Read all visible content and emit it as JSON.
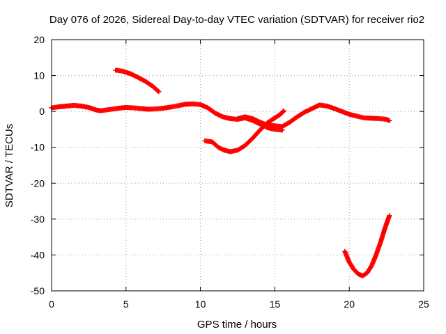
{
  "chart_data": {
    "type": "scatter",
    "title": "Day 076 of 2026, Sidereal Day-to-day VTEC variation (SDTVAR) for receiver rio2",
    "xlabel": "GPS time / hours",
    "ylabel": "SDTVAR / TECUs",
    "xlim": [
      0,
      25
    ],
    "ylim": [
      -50,
      20
    ],
    "xticks": [
      0,
      5,
      10,
      15,
      20,
      25
    ],
    "yticks": [
      20,
      10,
      0,
      -10,
      -20,
      -30,
      -40,
      -50
    ],
    "grid": true,
    "marker": "+",
    "color": "#ff0000",
    "series": [
      {
        "name": "trace-1",
        "x": [
          0.0,
          0.5,
          1.0,
          1.5,
          2.0,
          2.5,
          3.0,
          3.3,
          4.0,
          4.5,
          5.0,
          5.5,
          6.0,
          6.5,
          7.0,
          7.5,
          8.0,
          8.5,
          9.0,
          9.5,
          10.0,
          10.5,
          11.0,
          11.5,
          12.0,
          12.5,
          13.0,
          13.5,
          14.0,
          14.5,
          15.0,
          15.5
        ],
        "y": [
          1.0,
          1.3,
          1.5,
          1.7,
          1.5,
          1.1,
          0.4,
          0.2,
          0.6,
          0.9,
          1.1,
          1.0,
          0.8,
          0.6,
          0.7,
          0.9,
          1.2,
          1.6,
          2.0,
          2.1,
          1.9,
          1.0,
          -0.5,
          -1.5,
          -2.0,
          -2.2,
          -1.8,
          -2.5,
          -3.5,
          -4.5,
          -5.0,
          -5.2
        ]
      },
      {
        "name": "trace-2",
        "x": [
          4.3,
          4.8,
          5.3,
          5.8,
          6.3,
          6.8,
          7.2
        ],
        "y": [
          11.5,
          11.2,
          10.5,
          9.5,
          8.4,
          7.0,
          5.5
        ]
      },
      {
        "name": "trace-3",
        "x": [
          10.3,
          10.8,
          11.2,
          11.6,
          12.0,
          12.5,
          13.0,
          13.5,
          14.0,
          14.5,
          15.0,
          15.3,
          15.5,
          15.6
        ],
        "y": [
          -8.2,
          -8.5,
          -10.0,
          -10.8,
          -11.2,
          -10.8,
          -9.5,
          -7.5,
          -5.2,
          -3.2,
          -1.8,
          -1.0,
          -0.3,
          0.2
        ]
      },
      {
        "name": "trace-4",
        "x": [
          12.5,
          13.0,
          13.5,
          14.0,
          14.5,
          15.0,
          15.5,
          16.0,
          16.5,
          17.0,
          17.5,
          18.0,
          18.5,
          19.0,
          19.5,
          20.0,
          20.5,
          21.0,
          21.5,
          22.0,
          22.5,
          22.7
        ],
        "y": [
          -2.0,
          -1.5,
          -2.0,
          -3.0,
          -3.8,
          -4.0,
          -4.2,
          -3.0,
          -1.5,
          -0.2,
          0.8,
          1.8,
          1.5,
          0.8,
          0.0,
          -0.8,
          -1.3,
          -1.8,
          -1.9,
          -2.0,
          -2.2,
          -2.6
        ]
      },
      {
        "name": "trace-5",
        "x": [
          19.7,
          20.0,
          20.3,
          20.6,
          20.9,
          21.2,
          21.5,
          21.8,
          22.1,
          22.4,
          22.7
        ],
        "y": [
          -39.0,
          -42.0,
          -44.0,
          -45.3,
          -45.8,
          -45.0,
          -43.0,
          -40.0,
          -36.5,
          -32.5,
          -29.0
        ]
      }
    ]
  }
}
